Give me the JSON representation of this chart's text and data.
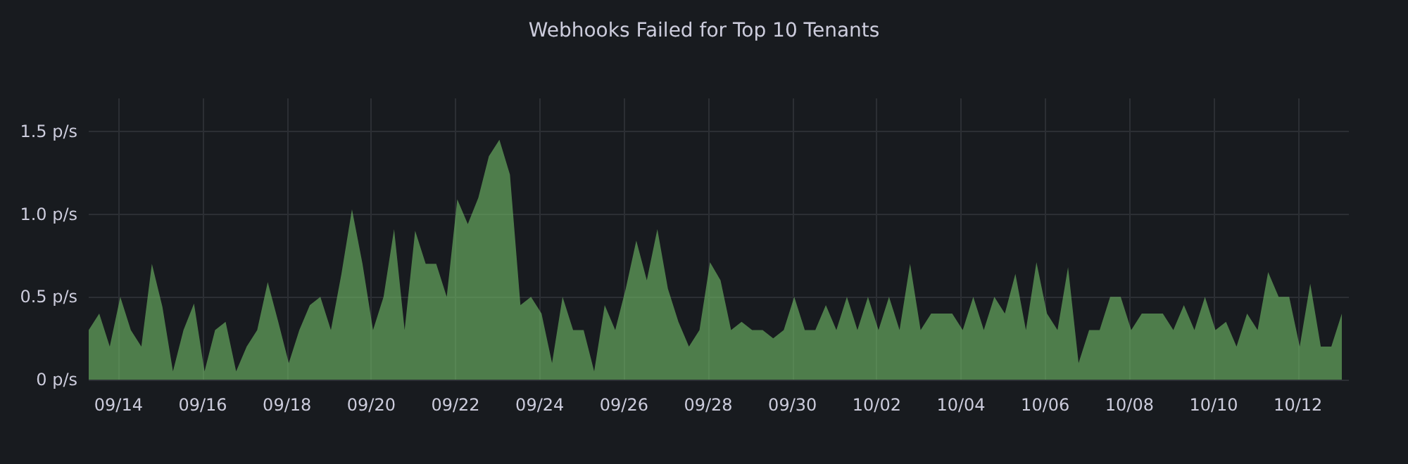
{
  "chart_data": {
    "type": "area",
    "title": "Webhooks Failed for Top 10 Tenants",
    "x": [
      "--09-13T07:00",
      "--09-13T13:00",
      "--09-13T19:00",
      "--09-14T01:00",
      "--09-14T07:00",
      "--09-14T13:00",
      "--09-14T19:00",
      "--09-15T01:00",
      "--09-15T07:00",
      "--09-15T13:00",
      "--09-15T19:00",
      "--09-16T01:00",
      "--09-16T07:00",
      "--09-16T13:00",
      "--09-16T19:00",
      "--09-17T01:00",
      "--09-17T07:00",
      "--09-17T13:00",
      "--09-17T19:00",
      "--09-18T01:00",
      "--09-18T07:00",
      "--09-18T13:00",
      "--09-18T19:00",
      "--09-19T01:00",
      "--09-19T07:00",
      "--09-19T13:00",
      "--09-19T19:00",
      "--09-20T01:00",
      "--09-20T07:00",
      "--09-20T13:00",
      "--09-20T19:00",
      "--09-21T01:00",
      "--09-21T07:00",
      "--09-21T13:00",
      "--09-21T19:00",
      "--09-22T01:00",
      "--09-22T07:00",
      "--09-22T13:00",
      "--09-22T19:00",
      "--09-23T01:00",
      "--09-23T07:00",
      "--09-23T13:00",
      "--09-23T19:00",
      "--09-24T01:00",
      "--09-24T07:00",
      "--09-24T13:00",
      "--09-24T19:00",
      "--09-25T01:00",
      "--09-25T07:00",
      "--09-25T13:00",
      "--09-25T19:00",
      "--09-26T01:00",
      "--09-26T07:00",
      "--09-26T13:00",
      "--09-26T19:00",
      "--09-27T01:00",
      "--09-27T07:00",
      "--09-27T13:00",
      "--09-27T19:00",
      "--09-28T01:00",
      "--09-28T07:00",
      "--09-28T13:00",
      "--09-28T19:00",
      "--09-29T01:00",
      "--09-29T07:00",
      "--09-29T13:00",
      "--09-29T19:00",
      "--09-30T01:00",
      "--09-30T07:00",
      "--09-30T13:00",
      "--09-30T19:00",
      "--10-01T01:00",
      "--10-01T07:00",
      "--10-01T13:00",
      "--10-01T19:00",
      "--10-02T01:00",
      "--10-02T07:00",
      "--10-02T13:00",
      "--10-02T19:00",
      "--10-03T01:00",
      "--10-03T07:00",
      "--10-03T13:00",
      "--10-03T19:00",
      "--10-04T01:00",
      "--10-04T07:00",
      "--10-04T13:00",
      "--10-04T19:00",
      "--10-05T01:00",
      "--10-05T07:00",
      "--10-05T13:00",
      "--10-05T19:00",
      "--10-06T01:00",
      "--10-06T07:00",
      "--10-06T13:00",
      "--10-06T19:00",
      "--10-07T01:00",
      "--10-07T07:00",
      "--10-07T13:00",
      "--10-07T19:00",
      "--10-08T01:00",
      "--10-08T07:00",
      "--10-08T13:00",
      "--10-08T19:00",
      "--10-09T01:00",
      "--10-09T07:00",
      "--10-09T13:00",
      "--10-09T19:00",
      "--10-10T01:00",
      "--10-10T07:00",
      "--10-10T13:00",
      "--10-10T19:00",
      "--10-11T01:00",
      "--10-11T07:00",
      "--10-11T13:00",
      "--10-11T19:00",
      "--10-12T01:00",
      "--10-12T07:00",
      "--10-12T13:00",
      "--10-12T19:00",
      "--10-13T01:00"
    ],
    "series": [
      {
        "color": "#73bf69",
        "values": [
          0.3,
          0.4,
          0.2,
          0.5,
          0.3,
          0.2,
          0.7,
          0.44,
          0.05,
          0.3,
          0.46,
          0.05,
          0.3,
          0.35,
          0.05,
          0.2,
          0.3,
          0.59,
          0.35,
          0.1,
          0.3,
          0.45,
          0.5,
          0.3,
          0.64,
          1.03,
          0.7,
          0.3,
          0.5,
          0.91,
          0.3,
          0.9,
          0.7,
          0.7,
          0.5,
          1.09,
          0.94,
          1.1,
          1.35,
          1.45,
          1.24,
          0.45,
          0.5,
          0.4,
          0.1,
          0.5,
          0.3,
          0.3,
          0.05,
          0.45,
          0.3,
          0.55,
          0.84,
          0.6,
          0.91,
          0.55,
          0.35,
          0.2,
          0.3,
          0.71,
          0.6,
          0.3,
          0.35,
          0.3,
          0.3,
          0.25,
          0.3,
          0.5,
          0.3,
          0.3,
          0.45,
          0.3,
          0.5,
          0.3,
          0.5,
          0.3,
          0.5,
          0.3,
          0.7,
          0.3,
          0.4,
          0.4,
          0.4,
          0.3,
          0.5,
          0.3,
          0.5,
          0.4,
          0.64,
          0.3,
          0.71,
          0.4,
          0.3,
          0.68,
          0.1,
          0.3,
          0.3,
          0.5,
          0.5,
          0.3,
          0.4,
          0.4,
          0.4,
          0.3,
          0.45,
          0.3,
          0.5,
          0.3,
          0.35,
          0.2,
          0.4,
          0.3,
          0.65,
          0.5,
          0.5,
          0.2,
          0.58,
          0.2,
          0.2,
          0.4
        ]
      }
    ],
    "xlim": [
      "--09-13T07:00",
      "--10-13T05:00"
    ],
    "xticks": [
      {
        "value": "--09-14",
        "label": "09/14"
      },
      {
        "value": "--09-16",
        "label": "09/16"
      },
      {
        "value": "--09-18",
        "label": "09/18"
      },
      {
        "value": "--09-20",
        "label": "09/20"
      },
      {
        "value": "--09-22",
        "label": "09/22"
      },
      {
        "value": "--09-24",
        "label": "09/24"
      },
      {
        "value": "--09-26",
        "label": "09/26"
      },
      {
        "value": "--09-28",
        "label": "09/28"
      },
      {
        "value": "--09-30",
        "label": "09/30"
      },
      {
        "value": "--10-02",
        "label": "10/02"
      },
      {
        "value": "--10-04",
        "label": "10/04"
      },
      {
        "value": "--10-06",
        "label": "10/06"
      },
      {
        "value": "--10-08",
        "label": "10/08"
      },
      {
        "value": "--10-10",
        "label": "10/10"
      },
      {
        "value": "--10-12",
        "label": "10/12"
      }
    ],
    "ylim": [
      0,
      1.7
    ],
    "yticks": [
      {
        "value": 0,
        "label": "0 p/s"
      },
      {
        "value": 0.5,
        "label": "0.5 p/s"
      },
      {
        "value": 1,
        "label": "1.0 p/s"
      },
      {
        "value": 1.5,
        "label": "1.5 p/s"
      }
    ],
    "grid": true,
    "marker": "none"
  }
}
